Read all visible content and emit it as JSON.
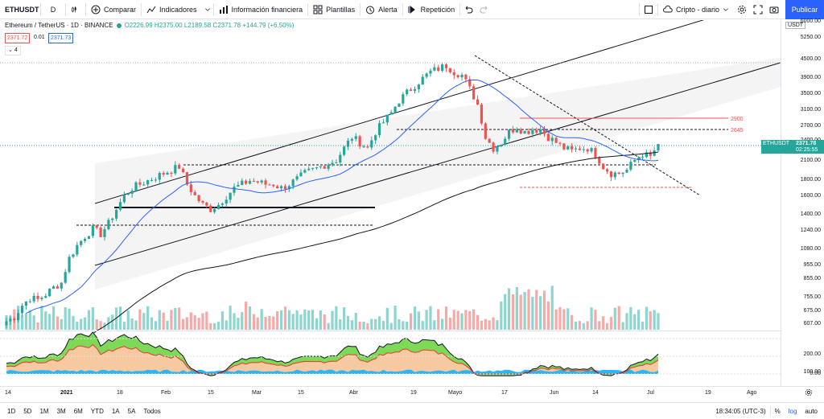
{
  "toolbar": {
    "symbol": "ETHUSDT",
    "interval": "D",
    "compare": "Comparar",
    "indicators": "Indicadores",
    "financial": "Información financiera",
    "templates": "Plantillas",
    "alert": "Alerta",
    "replay": "Repetición",
    "layout_name": "Cripto - diario",
    "publish": "Publicar"
  },
  "legend": {
    "title": "Ethereum / TetherUS · 1D · BINANCE",
    "ohlc": "O2226.99 H2375.00 L2189.58 C2371.78 +144.79 (+6.50%)",
    "bid": "2371.72",
    "spread": "0.01",
    "ask": "2371.73",
    "indicators_count": "4"
  },
  "price_scale": {
    "currency": "USDT",
    "labels": [
      "6000.00",
      "5250.00",
      "4500.00",
      "3900.00",
      "3500.00",
      "3100.00",
      "2700.00",
      "2400.00",
      "2100.00",
      "1800.00",
      "1600.00",
      "1400.00",
      "1240.00",
      "1080.00",
      "955.00",
      "855.00",
      "755.00",
      "675.00",
      "607.00",
      "200.00",
      "100.00",
      "0.00"
    ],
    "current_symbol": "ETHUSDT",
    "current_price": "2371.78",
    "countdown": "02:25:55",
    "level_2900": "2900",
    "level_2645": "2645"
  },
  "time_scale": {
    "labels": [
      "14",
      "2021",
      "18",
      "Feb",
      "15",
      "Mar",
      "15",
      "Abr",
      "19",
      "Mayo",
      "17",
      "Jun",
      "14",
      "Jul",
      "19",
      "Ago"
    ]
  },
  "bottom_bar": {
    "ranges": [
      "1D",
      "5D",
      "1M",
      "3M",
      "6M",
      "YTD",
      "1A",
      "5A",
      "Todos"
    ],
    "clock": "18:34:05 (UTC-3)",
    "percent": "%",
    "log": "log",
    "auto": "auto"
  },
  "colors": {
    "up": "#26a69a",
    "down": "#ef5350",
    "accent": "#2962ff"
  },
  "chart_data": {
    "type": "candlestick",
    "title": "Ethereum / TetherUS · 1D · BINANCE",
    "x_labels": [
      "14",
      "2021",
      "18",
      "Feb",
      "15",
      "Mar",
      "15",
      "Abr",
      "19",
      "Mayo",
      "17",
      "Jun",
      "14",
      "Jul",
      "19",
      "Ago"
    ],
    "close_path": [
      620,
      640,
      700,
      740,
      730,
      760,
      800,
      830,
      1000,
      1100,
      1180,
      1250,
      1200,
      1300,
      1450,
      1600,
      1700,
      1750,
      1800,
      1850,
      1900,
      1950,
      2000,
      1750,
      1600,
      1500,
      1450,
      1500,
      1600,
      1700,
      1750,
      1800,
      1780,
      1750,
      1750,
      1700,
      1750,
      1820,
      1900,
      1950,
      2000,
      2050,
      2100,
      2300,
      2500,
      2400,
      2300,
      2600,
      2800,
      3000,
      3300,
      3500,
      3700,
      3900,
      4100,
      4200,
      4300,
      4100,
      4000,
      3600,
      3200,
      2500,
      2300,
      2400,
      2600,
      2700,
      2600,
      2650,
      2650,
      2500,
      2400,
      2300,
      2250,
      2300,
      2300,
      2200,
      2000,
      1900,
      1900,
      1950,
      2100,
      2200,
      2150,
      2371.78
    ],
    "ylim": [
      550,
      6000
    ],
    "levels": [
      2900,
      2645
    ],
    "last_price": 2371.78
  }
}
